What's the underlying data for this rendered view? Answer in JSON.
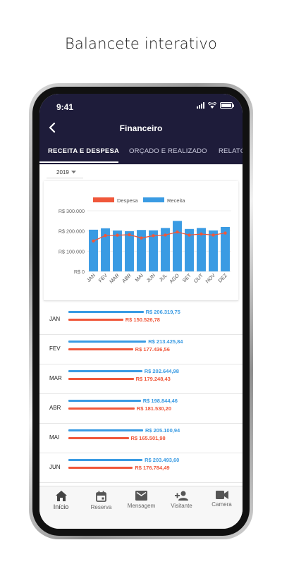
{
  "headline": "Balancete interativo",
  "status": {
    "time": "9:41"
  },
  "header": {
    "title": "Financeiro"
  },
  "tabs": [
    {
      "label": "RECEITA E DESPESA",
      "active": true
    },
    {
      "label": "ORÇADO E REALIZADO",
      "active": false
    },
    {
      "label": "RELATÓ",
      "active": false
    }
  ],
  "year_filter": {
    "value": "2019"
  },
  "colors": {
    "despesa": "#f0573a",
    "receita": "#3a9be3",
    "header_bg": "#1e1c3a"
  },
  "chart_data": {
    "type": "bar",
    "categories": [
      "JAN",
      "FEV",
      "MAR",
      "ABR",
      "MAI",
      "JUN",
      "JUL",
      "AGO",
      "SET",
      "OUT",
      "NOV",
      "DEZ"
    ],
    "series": [
      {
        "name": "Receita",
        "kind": "bar",
        "values": [
          206319.75,
          213425.84,
          202644.98,
          198844.46,
          205100.94,
          203493.6,
          215000,
          250000,
          210000,
          215000,
          203000,
          220000
        ]
      },
      {
        "name": "Despesa",
        "kind": "line",
        "values": [
          150526.78,
          177436.56,
          179248.43,
          181530.2,
          165501.98,
          176784.49,
          180000,
          195000,
          180000,
          185000,
          180000,
          190000
        ]
      }
    ],
    "y_ticks": [
      "R$ 300.000",
      "R$ 200.000",
      "R$ 100.000",
      "R$ 0"
    ],
    "ylim": [
      0,
      300000
    ],
    "legend": [
      "Despesa",
      "Receita"
    ],
    "legend_position": "top",
    "grid": true
  },
  "rows": [
    {
      "month": "JAN",
      "receita": 206319.75,
      "despesa": 150526.78,
      "receita_label": "R$ 206.319,75",
      "despesa_label": "R$ 150.526,78"
    },
    {
      "month": "FEV",
      "receita": 213425.84,
      "despesa": 177436.56,
      "receita_label": "R$ 213.425,84",
      "despesa_label": "R$ 177.436,56"
    },
    {
      "month": "MAR",
      "receita": 202644.98,
      "despesa": 179248.43,
      "receita_label": "R$ 202.644,98",
      "despesa_label": "R$ 179.248,43"
    },
    {
      "month": "ABR",
      "receita": 198844.46,
      "despesa": 181530.2,
      "receita_label": "R$ 198.844,46",
      "despesa_label": "R$ 181.530,20"
    },
    {
      "month": "MAI",
      "receita": 205100.94,
      "despesa": 165501.98,
      "receita_label": "R$ 205.100,94",
      "despesa_label": "R$ 165.501,98"
    },
    {
      "month": "JUN",
      "receita": 203493.6,
      "despesa": 176784.49,
      "receita_label": "R$ 203.493,60",
      "despesa_label": "R$ 176.784,49"
    }
  ],
  "bottom_nav": [
    {
      "label": "Início",
      "icon": "home-icon",
      "active": true
    },
    {
      "label": "Reserva",
      "icon": "calendar-icon",
      "active": false
    },
    {
      "label": "Mensagem",
      "icon": "mail-icon",
      "active": false
    },
    {
      "label": "Visitante",
      "icon": "add-person-icon",
      "active": false
    },
    {
      "label": "Camera",
      "icon": "video-camera-icon",
      "active": false
    }
  ]
}
